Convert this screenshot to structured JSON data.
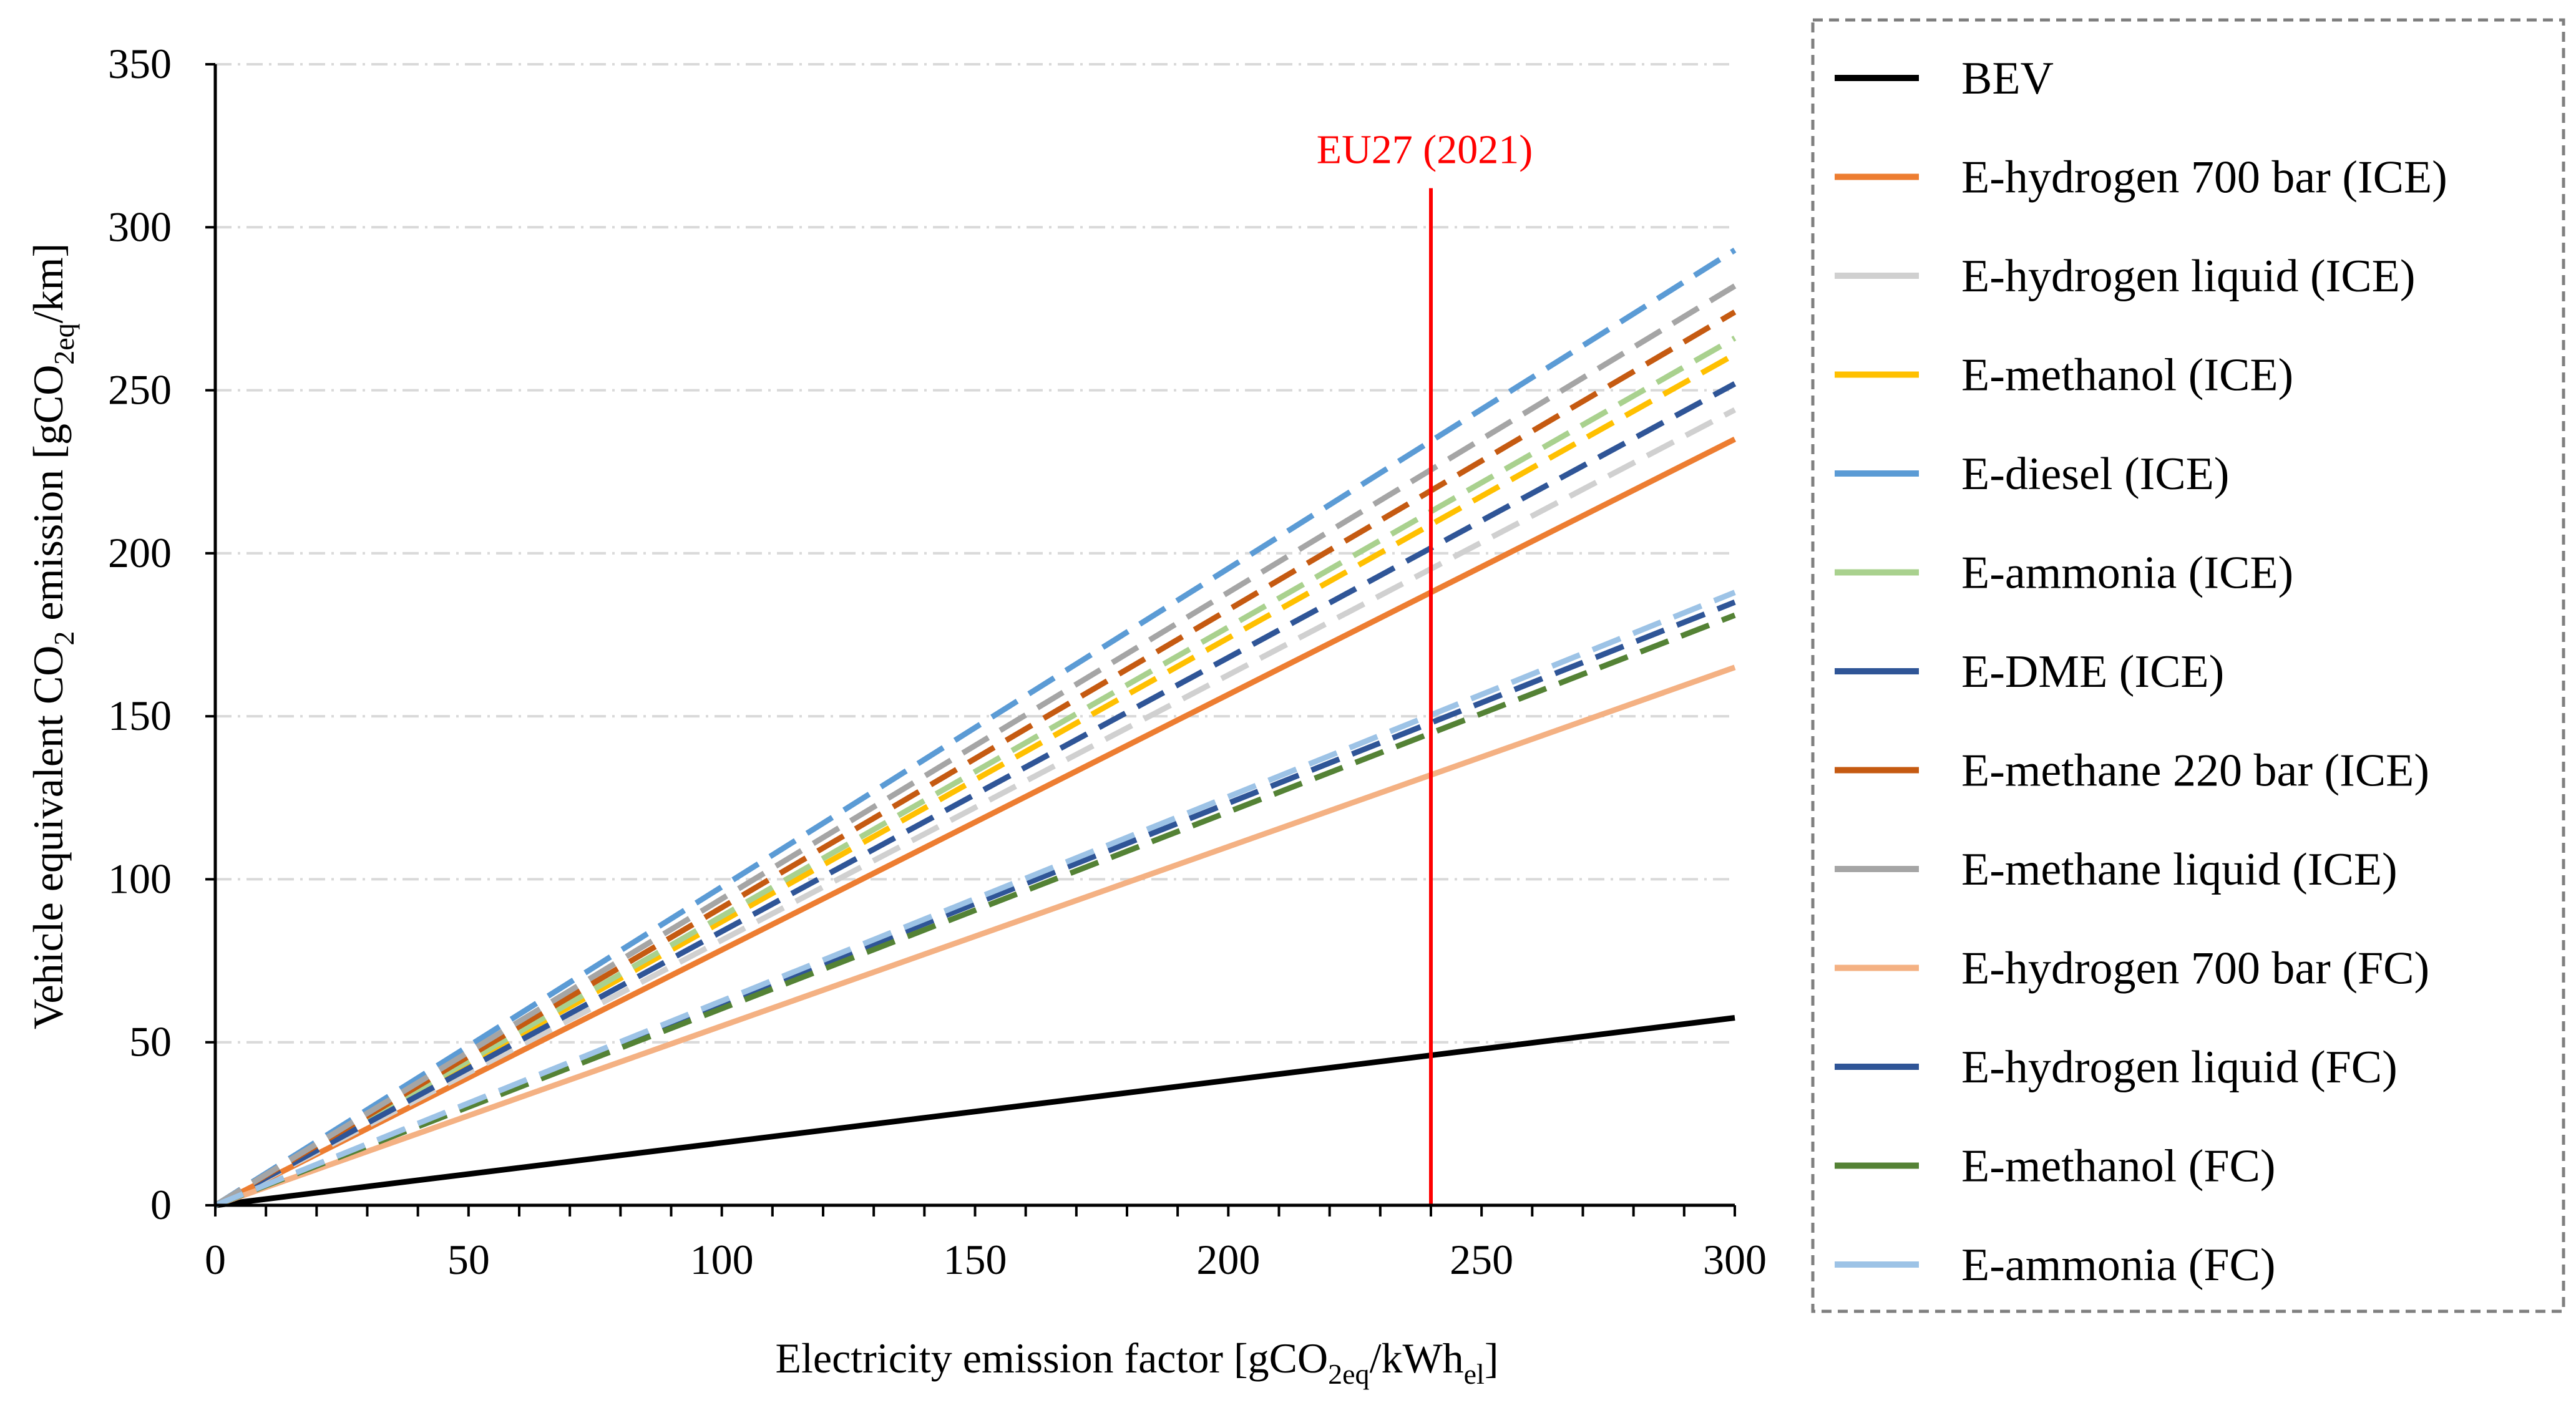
{
  "chart_data": {
    "type": "line",
    "title": "",
    "xlabel": {
      "main": "Electricity emission factor [gCO",
      "sub1": "2eq",
      "mid": "/kWh",
      "sub2": "el",
      "end": "]"
    },
    "ylabel": {
      "main": "Vehicle equivalent CO",
      "sub1": "2",
      "mid": " emission [gCO",
      "sub2": "2eq",
      "end": "/km]"
    },
    "xlim": [
      0,
      300
    ],
    "ylim": [
      0,
      350
    ],
    "xticks": [
      0,
      50,
      100,
      150,
      200,
      250,
      300
    ],
    "yticks": [
      0,
      50,
      100,
      150,
      200,
      250,
      300,
      350
    ],
    "grid": "horizontal dash-dot",
    "legend_position": "right",
    "x": [
      0,
      300
    ],
    "series": [
      {
        "name": "BEV",
        "values": [
          0,
          57.5
        ],
        "color": "#000000",
        "dash": "solid"
      },
      {
        "name": "E-hydrogen 700 bar (ICE)",
        "values": [
          0,
          235
        ],
        "color": "#ED7D31",
        "dash": "solid"
      },
      {
        "name": "E-hydrogen liquid (ICE)",
        "values": [
          0,
          244
        ],
        "color": "#D0D0D0",
        "dash": "dashed"
      },
      {
        "name": "E-methanol (ICE)",
        "values": [
          0,
          261
        ],
        "color": "#FFC000",
        "dash": "dashed"
      },
      {
        "name": "E-diesel (ICE)",
        "values": [
          0,
          293
        ],
        "color": "#5B9BD5",
        "dash": "dashed"
      },
      {
        "name": "E-ammonia (ICE)",
        "values": [
          0,
          266
        ],
        "color": "#A9D18E",
        "dash": "dashed"
      },
      {
        "name": "E-DME (ICE)",
        "values": [
          0,
          252
        ],
        "color": "#2F5597",
        "dash": "dashed"
      },
      {
        "name": "E-methane 220 bar (ICE)",
        "values": [
          0,
          274
        ],
        "color": "#C55A11",
        "dash": "dashed"
      },
      {
        "name": "E-methane liquid (ICE)",
        "values": [
          0,
          282
        ],
        "color": "#A5A5A5",
        "dash": "dashed"
      },
      {
        "name": "E-hydrogen 700 bar (FC)",
        "values": [
          0,
          165
        ],
        "color": "#F4B183",
        "dash": "solid"
      },
      {
        "name": "E-hydrogen liquid (FC)",
        "values": [
          0,
          185
        ],
        "color": "#2F5597",
        "dash": "dashed"
      },
      {
        "name": "E-methanol (FC)",
        "values": [
          0,
          181
        ],
        "color": "#548235",
        "dash": "dashed"
      },
      {
        "name": "E-ammonia (FC)",
        "values": [
          0,
          188
        ],
        "color": "#9DC3E6",
        "dash": "dashed"
      }
    ],
    "annotations": [
      {
        "type": "vline",
        "x": 240,
        "y_top": 312,
        "label": "EU27 (2021)",
        "color": "#FF0000"
      }
    ]
  }
}
